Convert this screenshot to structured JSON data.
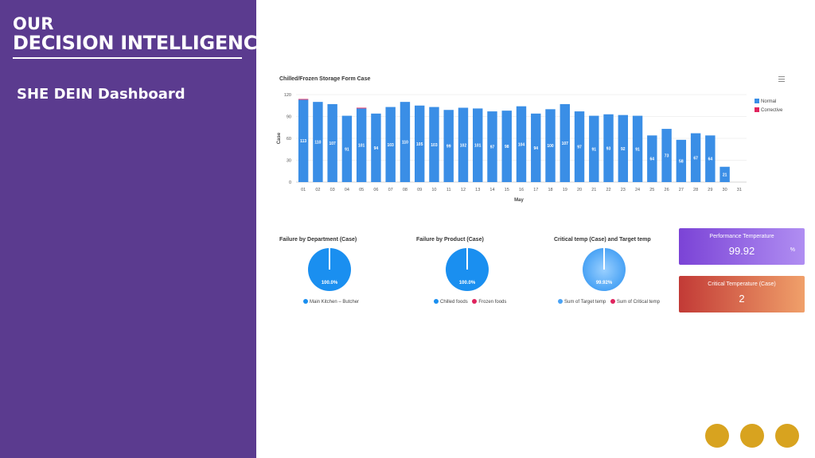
{
  "brand": {
    "line1": "OUR",
    "line2": "DECISION INTELLIGENCE"
  },
  "dashboard_title": "SHE DEIN Dashboard",
  "main_chart": {
    "title": "Chilled/Frozen Storage Form Case",
    "menu_icon": "hamburger-menu-icon"
  },
  "chart_data": [
    {
      "type": "bar",
      "title": "Chilled/Frozen Storage Form Case",
      "xlabel": "May",
      "ylabel": "Case",
      "ylim": [
        0,
        120
      ],
      "yticks": [
        0,
        30,
        60,
        90,
        120
      ],
      "categories": [
        "01",
        "02",
        "03",
        "04",
        "05",
        "06",
        "07",
        "08",
        "09",
        "10",
        "11",
        "12",
        "13",
        "14",
        "15",
        "16",
        "17",
        "18",
        "19",
        "20",
        "21",
        "22",
        "23",
        "24",
        "25",
        "26",
        "27",
        "28",
        "29",
        "30",
        "31"
      ],
      "series": [
        {
          "name": "Normal",
          "color": "#3a8ee6",
          "values": [
            113,
            110,
            107,
            91,
            101,
            94,
            103,
            110,
            105,
            103,
            99,
            102,
            101,
            97,
            98,
            104,
            94,
            100,
            107,
            97,
            91,
            93,
            92,
            91,
            64,
            73,
            58,
            67,
            64,
            21,
            0
          ]
        },
        {
          "name": "Corrective",
          "color": "#e0245e",
          "values": [
            1,
            0,
            0,
            0,
            1,
            0,
            0,
            0,
            0,
            0,
            0,
            0,
            0,
            0,
            0,
            0,
            0,
            0,
            0,
            0,
            0,
            0,
            0,
            0,
            0,
            0,
            0,
            0,
            0,
            0,
            0
          ]
        }
      ],
      "data_labels": [
        "113",
        "110",
        "107",
        "91",
        "101",
        "94",
        "103",
        "110",
        "105",
        "103",
        "99",
        "102",
        "101",
        "97",
        "98",
        "104",
        "94",
        "100",
        "107",
        "97",
        "91",
        "93",
        "92",
        "91",
        "64",
        "73",
        "58",
        "67",
        "64",
        "21",
        ""
      ],
      "grid": true,
      "legend_position": "right"
    },
    {
      "type": "pie",
      "title": "Failure by Department (Case)",
      "slices": [
        {
          "name": "Main Kitchen – Butcher",
          "value": 100.0,
          "color": "#1a8ff0"
        }
      ],
      "slice_label": "100.0%"
    },
    {
      "type": "pie",
      "title": "Failure by Product (Case)",
      "slices": [
        {
          "name": "Chilled foods",
          "value": 100.0,
          "color": "#1a8ff0"
        },
        {
          "name": "Frozen foods",
          "value": 0.0,
          "color": "#e0245e"
        }
      ],
      "slice_label": "100.0%"
    },
    {
      "type": "pie",
      "title": "Critical temp (Case) and Target temp",
      "slices": [
        {
          "name": "Sum of Target temp",
          "value": 99.92,
          "color": "#4aa3f5"
        },
        {
          "name": "Sum of Critical temp",
          "value": 0.08,
          "color": "#e0245e"
        }
      ],
      "slice_label": "99.92%"
    }
  ],
  "pies": [
    {
      "title": "Failure by Department (Case)",
      "label": "100.0%",
      "legend": [
        {
          "name": "Main Kitchen – Butcher",
          "color": "#1a8ff0"
        }
      ]
    },
    {
      "title": "Failure by Product (Case)",
      "label": "100.0%",
      "legend": [
        {
          "name": "Chilled foods",
          "color": "#1a8ff0"
        },
        {
          "name": "Frozen foods",
          "color": "#e0245e"
        }
      ]
    },
    {
      "title": "Critical temp (Case) and Target temp",
      "label": "99.92%",
      "legend": [
        {
          "name": "Sum of Target temp",
          "color": "#4aa3f5"
        },
        {
          "name": "Sum of Critical temp",
          "color": "#e0245e"
        }
      ]
    }
  ],
  "kpis": [
    {
      "label": "Performance Temperature",
      "value": "99.92",
      "unit": "%"
    },
    {
      "label": "Critical Temperature (Case)",
      "value": "2",
      "unit": ""
    }
  ],
  "colors": {
    "panel": "#5b3b8f",
    "bar": "#3a8ee6",
    "corrective": "#e0245e",
    "dots": "#d8a31f"
  }
}
